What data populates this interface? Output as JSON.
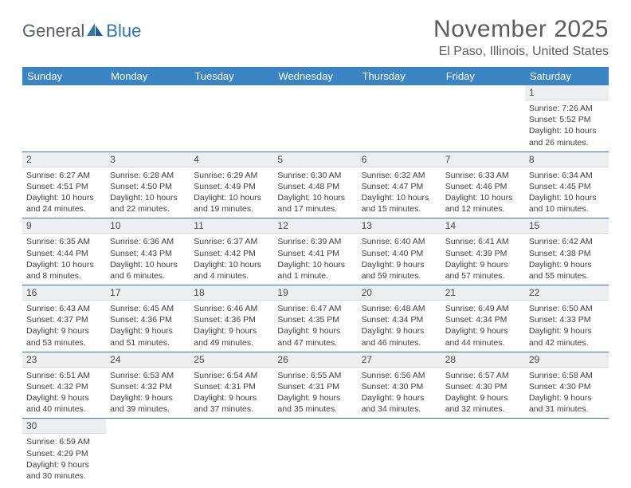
{
  "logo": {
    "first": "General",
    "second": "Blue"
  },
  "header": {
    "month_title": "November 2025",
    "location": "El Paso, Illinois, United States"
  },
  "colors": {
    "header_bg": "#3a84c4",
    "header_text": "#ffffff",
    "daynum_bg": "#eceeef",
    "border": "#3a74a8",
    "title_color": "#5c5c5c"
  },
  "weekdays": [
    "Sunday",
    "Monday",
    "Tuesday",
    "Wednesday",
    "Thursday",
    "Friday",
    "Saturday"
  ],
  "weeks": [
    [
      null,
      null,
      null,
      null,
      null,
      null,
      {
        "n": "1",
        "sunrise": "Sunrise: 7:26 AM",
        "sunset": "Sunset: 5:52 PM",
        "daylight": "Daylight: 10 hours and 26 minutes."
      }
    ],
    [
      {
        "n": "2",
        "sunrise": "Sunrise: 6:27 AM",
        "sunset": "Sunset: 4:51 PM",
        "daylight": "Daylight: 10 hours and 24 minutes."
      },
      {
        "n": "3",
        "sunrise": "Sunrise: 6:28 AM",
        "sunset": "Sunset: 4:50 PM",
        "daylight": "Daylight: 10 hours and 22 minutes."
      },
      {
        "n": "4",
        "sunrise": "Sunrise: 6:29 AM",
        "sunset": "Sunset: 4:49 PM",
        "daylight": "Daylight: 10 hours and 19 minutes."
      },
      {
        "n": "5",
        "sunrise": "Sunrise: 6:30 AM",
        "sunset": "Sunset: 4:48 PM",
        "daylight": "Daylight: 10 hours and 17 minutes."
      },
      {
        "n": "6",
        "sunrise": "Sunrise: 6:32 AM",
        "sunset": "Sunset: 4:47 PM",
        "daylight": "Daylight: 10 hours and 15 minutes."
      },
      {
        "n": "7",
        "sunrise": "Sunrise: 6:33 AM",
        "sunset": "Sunset: 4:46 PM",
        "daylight": "Daylight: 10 hours and 12 minutes."
      },
      {
        "n": "8",
        "sunrise": "Sunrise: 6:34 AM",
        "sunset": "Sunset: 4:45 PM",
        "daylight": "Daylight: 10 hours and 10 minutes."
      }
    ],
    [
      {
        "n": "9",
        "sunrise": "Sunrise: 6:35 AM",
        "sunset": "Sunset: 4:44 PM",
        "daylight": "Daylight: 10 hours and 8 minutes."
      },
      {
        "n": "10",
        "sunrise": "Sunrise: 6:36 AM",
        "sunset": "Sunset: 4:43 PM",
        "daylight": "Daylight: 10 hours and 6 minutes."
      },
      {
        "n": "11",
        "sunrise": "Sunrise: 6:37 AM",
        "sunset": "Sunset: 4:42 PM",
        "daylight": "Daylight: 10 hours and 4 minutes."
      },
      {
        "n": "12",
        "sunrise": "Sunrise: 6:39 AM",
        "sunset": "Sunset: 4:41 PM",
        "daylight": "Daylight: 10 hours and 1 minute."
      },
      {
        "n": "13",
        "sunrise": "Sunrise: 6:40 AM",
        "sunset": "Sunset: 4:40 PM",
        "daylight": "Daylight: 9 hours and 59 minutes."
      },
      {
        "n": "14",
        "sunrise": "Sunrise: 6:41 AM",
        "sunset": "Sunset: 4:39 PM",
        "daylight": "Daylight: 9 hours and 57 minutes."
      },
      {
        "n": "15",
        "sunrise": "Sunrise: 6:42 AM",
        "sunset": "Sunset: 4:38 PM",
        "daylight": "Daylight: 9 hours and 55 minutes."
      }
    ],
    [
      {
        "n": "16",
        "sunrise": "Sunrise: 6:43 AM",
        "sunset": "Sunset: 4:37 PM",
        "daylight": "Daylight: 9 hours and 53 minutes."
      },
      {
        "n": "17",
        "sunrise": "Sunrise: 6:45 AM",
        "sunset": "Sunset: 4:36 PM",
        "daylight": "Daylight: 9 hours and 51 minutes."
      },
      {
        "n": "18",
        "sunrise": "Sunrise: 6:46 AM",
        "sunset": "Sunset: 4:36 PM",
        "daylight": "Daylight: 9 hours and 49 minutes."
      },
      {
        "n": "19",
        "sunrise": "Sunrise: 6:47 AM",
        "sunset": "Sunset: 4:35 PM",
        "daylight": "Daylight: 9 hours and 47 minutes."
      },
      {
        "n": "20",
        "sunrise": "Sunrise: 6:48 AM",
        "sunset": "Sunset: 4:34 PM",
        "daylight": "Daylight: 9 hours and 46 minutes."
      },
      {
        "n": "21",
        "sunrise": "Sunrise: 6:49 AM",
        "sunset": "Sunset: 4:34 PM",
        "daylight": "Daylight: 9 hours and 44 minutes."
      },
      {
        "n": "22",
        "sunrise": "Sunrise: 6:50 AM",
        "sunset": "Sunset: 4:33 PM",
        "daylight": "Daylight: 9 hours and 42 minutes."
      }
    ],
    [
      {
        "n": "23",
        "sunrise": "Sunrise: 6:51 AM",
        "sunset": "Sunset: 4:32 PM",
        "daylight": "Daylight: 9 hours and 40 minutes."
      },
      {
        "n": "24",
        "sunrise": "Sunrise: 6:53 AM",
        "sunset": "Sunset: 4:32 PM",
        "daylight": "Daylight: 9 hours and 39 minutes."
      },
      {
        "n": "25",
        "sunrise": "Sunrise: 6:54 AM",
        "sunset": "Sunset: 4:31 PM",
        "daylight": "Daylight: 9 hours and 37 minutes."
      },
      {
        "n": "26",
        "sunrise": "Sunrise: 6:55 AM",
        "sunset": "Sunset: 4:31 PM",
        "daylight": "Daylight: 9 hours and 35 minutes."
      },
      {
        "n": "27",
        "sunrise": "Sunrise: 6:56 AM",
        "sunset": "Sunset: 4:30 PM",
        "daylight": "Daylight: 9 hours and 34 minutes."
      },
      {
        "n": "28",
        "sunrise": "Sunrise: 6:57 AM",
        "sunset": "Sunset: 4:30 PM",
        "daylight": "Daylight: 9 hours and 32 minutes."
      },
      {
        "n": "29",
        "sunrise": "Sunrise: 6:58 AM",
        "sunset": "Sunset: 4:30 PM",
        "daylight": "Daylight: 9 hours and 31 minutes."
      }
    ],
    [
      {
        "n": "30",
        "sunrise": "Sunrise: 6:59 AM",
        "sunset": "Sunset: 4:29 PM",
        "daylight": "Daylight: 9 hours and 30 minutes."
      },
      null,
      null,
      null,
      null,
      null,
      null
    ]
  ]
}
